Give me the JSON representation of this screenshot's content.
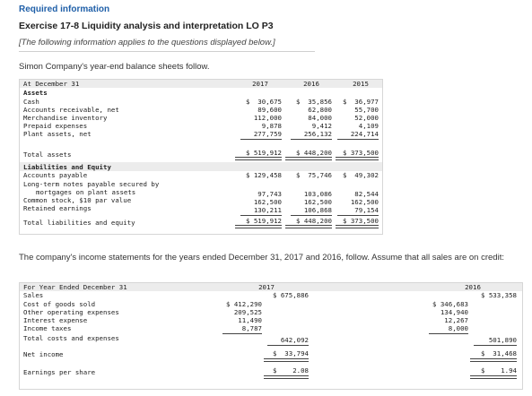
{
  "header": {
    "required": "Required information",
    "exercise": "Exercise 17-8 Liquidity analysis and interpretation LO P3",
    "note": "[The following information applies to the questions displayed below.]",
    "intro_balance": "Simon Company's year-end balance sheets follow.",
    "intro_income": "The company's income statements for the years ended December 31, 2017 and 2016, follow. Assume that all sales are on credit:"
  },
  "balance_sheet": {
    "head_label": "At December 31",
    "years": [
      "2017",
      "2016",
      "2015"
    ],
    "assets_heading": "Assets",
    "asset_rows": [
      {
        "label": "Cash",
        "values": [
          "$  30,675",
          "$  35,856",
          "$  36,977"
        ]
      },
      {
        "label": "Accounts receivable, net",
        "values": [
          "89,600",
          "62,800",
          "55,700"
        ]
      },
      {
        "label": "Merchandise inventory",
        "values": [
          "112,000",
          "84,000",
          "52,000"
        ]
      },
      {
        "label": "Prepaid expenses",
        "values": [
          "9,878",
          "9,412",
          "4,109"
        ]
      },
      {
        "label": "Plant assets, net",
        "values": [
          "277,759",
          "256,132",
          "224,714"
        ]
      }
    ],
    "total_assets": {
      "label": "Total assets",
      "values": [
        "$ 519,912",
        "$ 448,200",
        "$ 373,500"
      ]
    },
    "liab_heading": "Liabilities and Equity",
    "liab_rows": [
      {
        "label": "Accounts payable",
        "values": [
          "$ 129,458",
          "$  75,746",
          "$  49,302"
        ]
      },
      {
        "label": "Long-term notes payable secured by",
        "values": [
          "",
          "",
          ""
        ]
      },
      {
        "label": "mortgages on plant assets",
        "values": [
          "97,743",
          "103,086",
          "82,544"
        ]
      },
      {
        "label": "Common stock, $10 par value",
        "values": [
          "162,500",
          "162,500",
          "162,500"
        ]
      },
      {
        "label": "Retained earnings",
        "values": [
          "130,211",
          "106,868",
          "79,154"
        ]
      }
    ],
    "total_liab": {
      "label": "Total liabilities and equity",
      "values": [
        "$ 519,912",
        "$ 448,200",
        "$ 373,500"
      ]
    }
  },
  "income_statement": {
    "head_label": "For Year Ended December 31",
    "years": [
      "2017",
      "2016"
    ],
    "sales": {
      "label": "Sales",
      "values": [
        "$ 675,886",
        "$ 533,358"
      ]
    },
    "expense_rows": [
      {
        "label": "Cost of goods sold",
        "values": [
          "$ 412,290",
          "$ 346,683"
        ]
      },
      {
        "label": "Other operating expenses",
        "values": [
          "209,525",
          "134,940"
        ]
      },
      {
        "label": "Interest expense",
        "values": [
          "11,490",
          "12,267"
        ]
      },
      {
        "label": "Income taxes",
        "values": [
          "8,787",
          "8,000"
        ]
      }
    ],
    "total_costs": {
      "label": "Total costs and expenses",
      "values": [
        "642,092",
        "501,890"
      ]
    },
    "net_income": {
      "label": "Net income",
      "values": [
        "$  33,794",
        "$  31,468"
      ]
    },
    "eps": {
      "label": "Earnings per share",
      "values": [
        "$    2.08",
        "$    1.94"
      ]
    }
  }
}
